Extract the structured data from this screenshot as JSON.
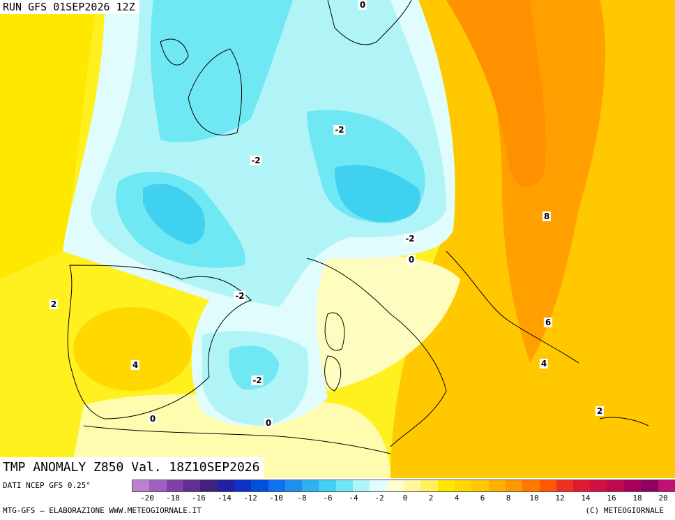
{
  "header": {
    "run": "RUN GFS 01SEP2026 12Z"
  },
  "map": {
    "title": "TMP ANOMALY Z850 Val. 18Z10SEP2026",
    "contour_labels": [
      {
        "id": "0-north",
        "text": "0"
      },
      {
        "id": "m2-germany",
        "text": "-2"
      },
      {
        "id": "m2-france",
        "text": "-2"
      },
      {
        "id": "m2-alps",
        "text": "-2"
      },
      {
        "id": "0-adriatic",
        "text": "0"
      },
      {
        "id": "m2-gulf-lion",
        "text": "-2"
      },
      {
        "id": "m2-sardinia",
        "text": "-2"
      },
      {
        "id": "0-algeria",
        "text": "0"
      },
      {
        "id": "0-morocco",
        "text": "0"
      },
      {
        "id": "2-portugal",
        "text": "2"
      },
      {
        "id": "4-spain",
        "text": "4"
      },
      {
        "id": "8-romania",
        "text": "8"
      },
      {
        "id": "6-balkans",
        "text": "6"
      },
      {
        "id": "4-greece",
        "text": "4"
      },
      {
        "id": "2-crete",
        "text": "2"
      }
    ]
  },
  "legend": {
    "source": "DATI NCEP GFS 0.25°",
    "credit_left": "MTG-GFS — ELABORAZIONE WWW.METEOGIORNALE.IT",
    "credit_right": "(C) METEOGIORNALE",
    "tick_labels": [
      "-20",
      "-18",
      "-16",
      "-14",
      "-12",
      "-10",
      "-8",
      "-6",
      "-4",
      "-2",
      "0",
      "2",
      "4",
      "6",
      "8",
      "10",
      "12",
      "14",
      "16",
      "18",
      "20"
    ],
    "colors": [
      "#c080d0",
      "#a060c0",
      "#8040a8",
      "#603090",
      "#402080",
      "#2020a0",
      "#1030c8",
      "#0050e0",
      "#1070f0",
      "#2090f0",
      "#30b0f0",
      "#40d0f0",
      "#70e8f4",
      "#b0f4f8",
      "#e0fcfc",
      "#fffcd0",
      "#fff8a0",
      "#fff060",
      "#ffe800",
      "#ffd800",
      "#ffc800",
      "#ffb000",
      "#ff9800",
      "#ff7800",
      "#ff5800",
      "#f03020",
      "#e01830",
      "#d01040",
      "#c00850",
      "#a80058",
      "#900060",
      "#c01070"
    ]
  }
}
